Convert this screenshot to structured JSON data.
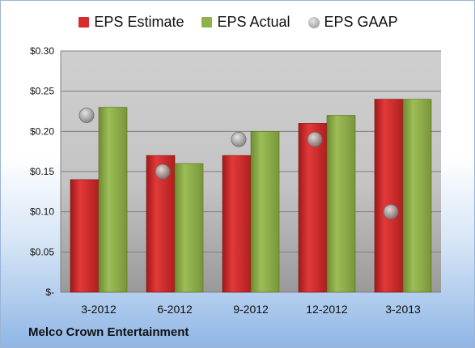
{
  "chart_data": {
    "type": "bar",
    "categories": [
      "3-2012",
      "6-2012",
      "9-2012",
      "12-2012",
      "3-2013"
    ],
    "series": [
      {
        "name": "EPS Estimate",
        "values": [
          0.14,
          0.17,
          0.17,
          0.21,
          0.24
        ],
        "color": "#d92b2b",
        "kind": "bar"
      },
      {
        "name": "EPS Actual",
        "values": [
          0.23,
          0.16,
          0.2,
          0.22,
          0.24
        ],
        "color": "#8fb04a",
        "kind": "bar"
      },
      {
        "name": "EPS GAAP",
        "values": [
          0.22,
          0.15,
          0.19,
          0.19,
          0.1
        ],
        "color": "#9a9a9a",
        "kind": "marker"
      }
    ],
    "ylim": [
      0,
      0.3
    ],
    "yticks": [
      0,
      0.05,
      0.1,
      0.15,
      0.2,
      0.25,
      0.3
    ],
    "ytick_labels": [
      "$-",
      "$0.05",
      "$0.10",
      "$0.15",
      "$0.20",
      "$0.25",
      "$0.30"
    ],
    "grid": true,
    "legend_position": "top-center"
  },
  "footer": {
    "company": "Melco Crown Entertainment"
  }
}
